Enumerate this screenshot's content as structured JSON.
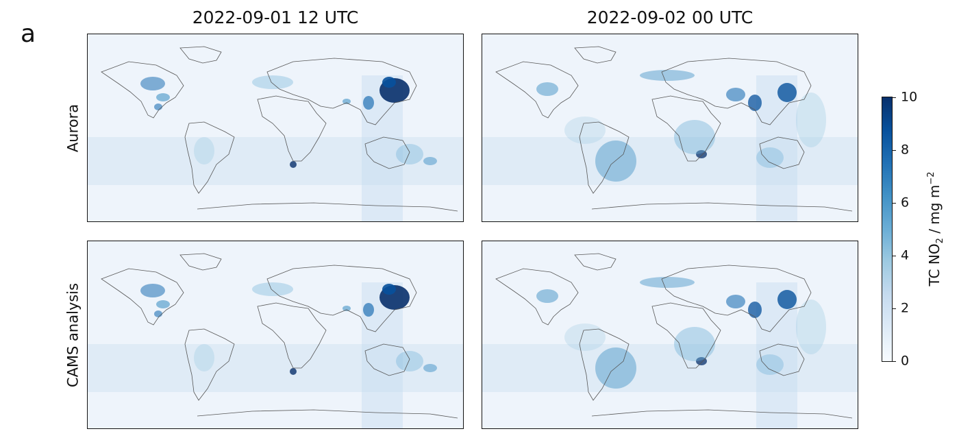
{
  "figure": {
    "panel_letter": "a",
    "columns": [
      {
        "title": "2022-09-01 12 UTC"
      },
      {
        "title": "2022-09-02 00 UTC"
      }
    ],
    "rows": [
      {
        "label": "Aurora"
      },
      {
        "label": "CAMS analysis"
      }
    ]
  },
  "colorbar": {
    "label_prefix": "TC NO",
    "label_sub": "2",
    "label_middle": " / mg m",
    "label_sup": "−2",
    "ticks": [
      "0",
      "2",
      "4",
      "6",
      "8",
      "10"
    ],
    "min": 0,
    "max": 10,
    "colormap": [
      "#f7fbff",
      "#deebf7",
      "#c6dbef",
      "#9ecae1",
      "#6baed6",
      "#4292c6",
      "#2171b5",
      "#08519c",
      "#08306b"
    ]
  }
}
